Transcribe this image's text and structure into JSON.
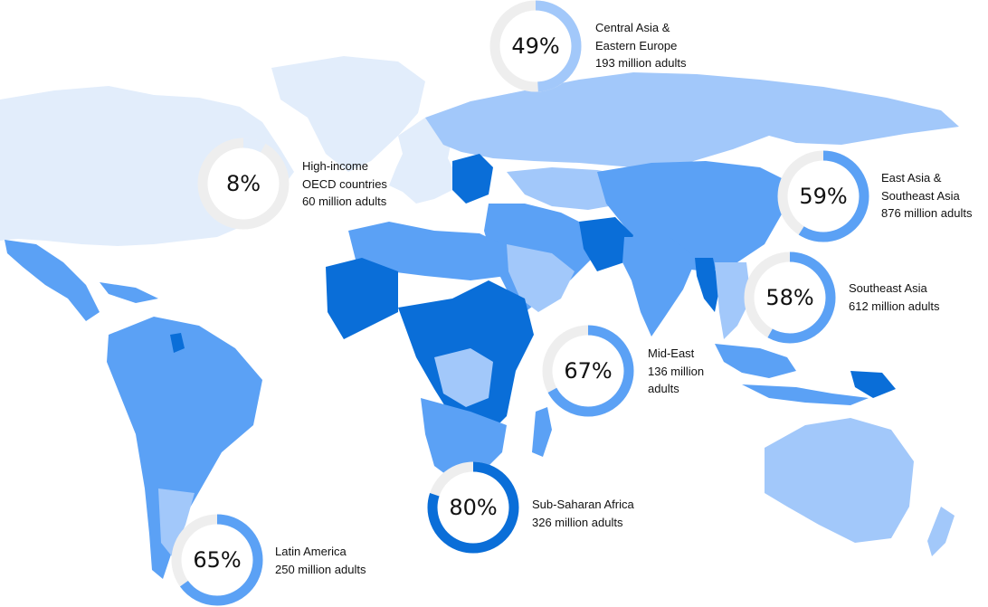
{
  "colors": {
    "land_lightest": "#e2edfb",
    "land_light": "#a2c8fa",
    "land_mid": "#5ba1f5",
    "land_dark": "#0a6ed8",
    "ring_track": "#eeeeee",
    "text": "#111111"
  },
  "regions": [
    {
      "id": "central-asia-eastern-europe",
      "percent_label": "49%",
      "percent": 49,
      "ring_color": "#a2c8fa",
      "label_lines": [
        "Central Asia &",
        "Eastern Europe",
        "193 million adults"
      ]
    },
    {
      "id": "high-income-oecd",
      "percent_label": "8%",
      "percent": 8,
      "ring_color": "#e2edfb",
      "label_lines": [
        "High-income",
        "OECD countries",
        "60 million adults"
      ]
    },
    {
      "id": "east-asia-southeast-asia",
      "percent_label": "59%",
      "percent": 59,
      "ring_color": "#5ba1f5",
      "label_lines": [
        "East Asia &",
        "Southeast Asia",
        "876 million adults"
      ]
    },
    {
      "id": "southeast-asia",
      "percent_label": "58%",
      "percent": 58,
      "ring_color": "#5ba1f5",
      "label_lines": [
        "Southeast Asia",
        "612 million adults"
      ]
    },
    {
      "id": "mid-east",
      "percent_label": "67%",
      "percent": 67,
      "ring_color": "#5ba1f5",
      "label_lines": [
        "Mid-East",
        "136 million",
        "adults"
      ]
    },
    {
      "id": "sub-saharan-africa",
      "percent_label": "80%",
      "percent": 80,
      "ring_color": "#0a6ed8",
      "label_lines": [
        "Sub-Saharan Africa",
        "326 million adults"
      ]
    },
    {
      "id": "latin-america",
      "percent_label": "65%",
      "percent": 65,
      "ring_color": "#5ba1f5",
      "label_lines": [
        "Latin America",
        "250 million adults"
      ]
    }
  ]
}
